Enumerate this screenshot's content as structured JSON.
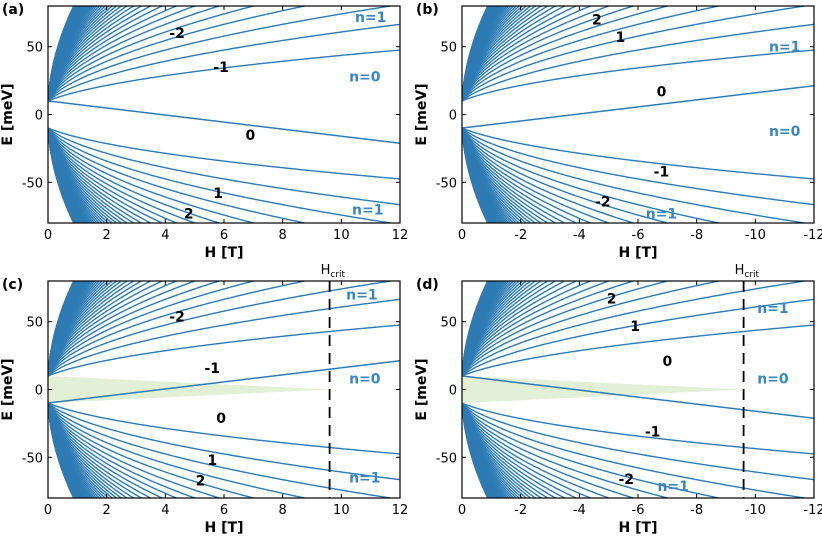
{
  "colors": {
    "curve": "#2e7bb4",
    "label_blue": "#3a86c0",
    "shade": "#e3f0d8",
    "frame": "#000000"
  },
  "chart_data": [
    {
      "panel": "(a)",
      "type": "line",
      "xlabel": "H [T]",
      "ylabel": "E [meV]",
      "xlim": [
        0,
        12
      ],
      "ylim": [
        -80,
        80
      ],
      "x_reversed": false,
      "xticks": [
        0,
        2,
        4,
        6,
        8,
        10,
        12
      ],
      "xtick_labels": [
        "0",
        "2",
        "4",
        "6",
        "8",
        "10",
        "12"
      ],
      "yticks": [
        -50,
        0,
        50
      ],
      "ytick_labels": [
        "-50",
        "0",
        "50"
      ],
      "gap": 10,
      "zero_level": {
        "sign": 1,
        "slope": 1.0
      },
      "annotations": [
        {
          "text": "-2",
          "x": 4.4,
          "y": 60,
          "color": "black"
        },
        {
          "text": "-1",
          "x": 5.9,
          "y": 35,
          "color": "black"
        },
        {
          "text": "0",
          "x": 6.9,
          "y": -15,
          "color": "black"
        },
        {
          "text": "1",
          "x": 5.8,
          "y": -58,
          "color": "black"
        },
        {
          "text": "2",
          "x": 4.8,
          "y": -73,
          "color": "black"
        },
        {
          "text": "n=1",
          "x": 11.0,
          "y": 72,
          "color": "blue"
        },
        {
          "text": "n=0",
          "x": 10.8,
          "y": 28,
          "color": "blue"
        },
        {
          "text": "n=1",
          "x": 10.9,
          "y": -70,
          "color": "blue"
        }
      ],
      "hcrit": null,
      "shade": null
    },
    {
      "panel": "(b)",
      "type": "line",
      "xlabel": "H [T]",
      "ylabel": "E [meV]",
      "xlim": [
        0,
        -12
      ],
      "ylim": [
        -80,
        80
      ],
      "x_reversed": true,
      "xticks": [
        0,
        -2,
        -4,
        -6,
        -8,
        -10,
        -12
      ],
      "xtick_labels": [
        "0",
        "-2",
        "-4",
        "-6",
        "-8",
        "-10",
        "-12"
      ],
      "yticks": [
        -50,
        0,
        50
      ],
      "ytick_labels": [
        "-50",
        "0",
        "50"
      ],
      "gap": 10,
      "zero_level": {
        "sign": -1,
        "slope": 1.0
      },
      "annotations": [
        {
          "text": "2",
          "x": -4.6,
          "y": 70,
          "color": "black"
        },
        {
          "text": "1",
          "x": -5.4,
          "y": 57,
          "color": "black"
        },
        {
          "text": "0",
          "x": -6.8,
          "y": 17,
          "color": "black"
        },
        {
          "text": "-1",
          "x": -6.8,
          "y": -42,
          "color": "black"
        },
        {
          "text": "-2",
          "x": -4.8,
          "y": -64,
          "color": "black"
        },
        {
          "text": "n=1",
          "x": -11.0,
          "y": 50,
          "color": "blue"
        },
        {
          "text": "n=0",
          "x": -11.0,
          "y": -12,
          "color": "blue"
        },
        {
          "text": "n=1",
          "x": -6.8,
          "y": -73,
          "color": "blue"
        }
      ],
      "hcrit": null,
      "shade": null
    },
    {
      "panel": "(c)",
      "type": "line",
      "xlabel": "H [T]",
      "ylabel": "E [meV]",
      "xlim": [
        0,
        12
      ],
      "ylim": [
        -80,
        80
      ],
      "x_reversed": false,
      "xticks": [
        0,
        2,
        4,
        6,
        8,
        10,
        12
      ],
      "xtick_labels": [
        "0",
        "2",
        "4",
        "6",
        "8",
        "10",
        "12"
      ],
      "yticks": [
        -50,
        0,
        50
      ],
      "ytick_labels": [
        "-50",
        "0",
        "50"
      ],
      "gap": 10,
      "zero_level": {
        "sign": -1,
        "slope": 1.0
      },
      "annotations": [
        {
          "text": "-2",
          "x": 4.4,
          "y": 54,
          "color": "black"
        },
        {
          "text": "-1",
          "x": 5.6,
          "y": 16,
          "color": "black"
        },
        {
          "text": "0",
          "x": 5.9,
          "y": -21,
          "color": "black"
        },
        {
          "text": "1",
          "x": 5.6,
          "y": -52,
          "color": "black"
        },
        {
          "text": "2",
          "x": 5.2,
          "y": -67,
          "color": "black"
        },
        {
          "text": "n=1",
          "x": 10.7,
          "y": 70,
          "color": "blue"
        },
        {
          "text": "n=0",
          "x": 10.8,
          "y": 8,
          "color": "blue"
        },
        {
          "text": "n=1",
          "x": 10.8,
          "y": -65,
          "color": "blue"
        }
      ],
      "hcrit": {
        "x": 9.6,
        "label": "H",
        "sub": "crit"
      },
      "shade": {
        "x_end": 9.6
      }
    },
    {
      "panel": "(d)",
      "type": "line",
      "xlabel": "H [T]",
      "ylabel": "E [meV]",
      "xlim": [
        0,
        -12
      ],
      "ylim": [
        -80,
        80
      ],
      "x_reversed": true,
      "xticks": [
        0,
        -2,
        -4,
        -6,
        -8,
        -10,
        -12
      ],
      "xtick_labels": [
        "0",
        "-2",
        "-4",
        "-6",
        "-8",
        "-10",
        "-12"
      ],
      "yticks": [
        -50,
        0,
        50
      ],
      "ytick_labels": [
        "-50",
        "0",
        "50"
      ],
      "gap": 10,
      "zero_level": {
        "sign": 1,
        "slope": 1.0
      },
      "annotations": [
        {
          "text": "2",
          "x": -5.1,
          "y": 67,
          "color": "black"
        },
        {
          "text": "1",
          "x": -5.9,
          "y": 47,
          "color": "black"
        },
        {
          "text": "0",
          "x": -7.0,
          "y": 21,
          "color": "black"
        },
        {
          "text": "-1",
          "x": -6.5,
          "y": -31,
          "color": "black"
        },
        {
          "text": "-2",
          "x": -5.6,
          "y": -66,
          "color": "black"
        },
        {
          "text": "n=1",
          "x": -10.6,
          "y": 60,
          "color": "blue"
        },
        {
          "text": "n=0",
          "x": -10.6,
          "y": 8,
          "color": "blue"
        },
        {
          "text": "n=1",
          "x": -7.2,
          "y": -71,
          "color": "blue"
        }
      ],
      "hcrit": {
        "x": -9.6,
        "label": "H",
        "sub": "crit"
      },
      "shade": {
        "x_end": -9.6
      }
    }
  ]
}
